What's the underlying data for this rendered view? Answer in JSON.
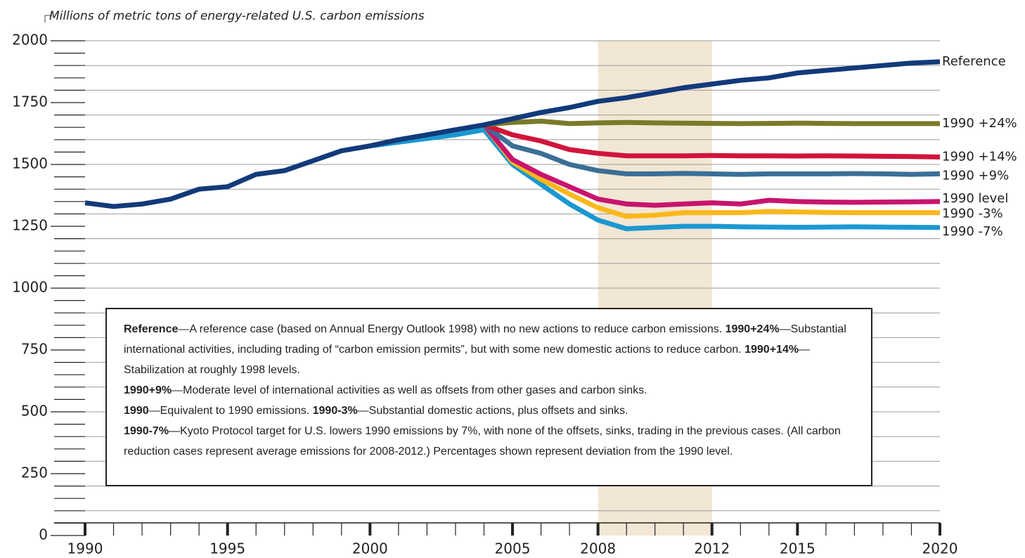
{
  "chart_data": {
    "type": "line",
    "title": "Millions of metric tons of energy-related U.S. carbon emissions",
    "x": [
      1990,
      1991,
      1992,
      1993,
      1994,
      1995,
      1996,
      1997,
      1998,
      1999,
      2000,
      2001,
      2002,
      2003,
      2004,
      2005,
      2006,
      2007,
      2008,
      2009,
      2010,
      2011,
      2012,
      2013,
      2014,
      2015,
      2016,
      2017,
      2018,
      2019,
      2020
    ],
    "xlim": [
      1990,
      2020
    ],
    "xticks": [
      1990,
      1995,
      2000,
      2005,
      2008,
      2012,
      2015,
      2020
    ],
    "xminor": [
      1990,
      1991,
      1992,
      1993,
      1994,
      1995,
      1996,
      1997,
      1998,
      1999,
      2000,
      2001,
      2002,
      2003,
      2004,
      2005,
      2006,
      2007,
      2008,
      2009,
      2010,
      2011,
      2012,
      2013,
      2014,
      2015,
      2016,
      2017,
      2018,
      2019,
      2020
    ],
    "ylim": [
      0,
      2000
    ],
    "yticks": [
      0,
      250,
      500,
      750,
      1000,
      1250,
      1500,
      1750,
      2000
    ],
    "yminor": [
      50,
      100,
      150,
      200,
      300,
      350,
      400,
      450,
      550,
      600,
      650,
      700,
      800,
      850,
      900,
      950,
      1050,
      1100,
      1150,
      1200,
      1300,
      1350,
      1400,
      1450,
      1550,
      1600,
      1650,
      1700,
      1800,
      1850,
      1900,
      1950
    ],
    "ygrid": [
      100,
      200,
      300,
      400,
      500,
      600,
      700,
      800,
      900,
      1000,
      1100,
      1200,
      1300,
      1400,
      1500,
      1600,
      1700,
      1800,
      1900,
      2000
    ],
    "shade": [
      2008,
      2012
    ],
    "shade_color": "#f2e6d4",
    "series": [
      {
        "name": "Reference",
        "color": "#123a7a",
        "values": [
          1345,
          1330,
          1340,
          1360,
          1400,
          1410,
          1460,
          1475,
          1515,
          1555,
          1575,
          1600,
          1620,
          1640,
          1660,
          1685,
          1710,
          1730,
          1755,
          1770,
          1790,
          1810,
          1825,
          1840,
          1850,
          1870,
          1880,
          1890,
          1900,
          1910,
          1915
        ]
      },
      {
        "name": "1990 +24%",
        "color": "#7a7a2a",
        "values": [
          null,
          null,
          null,
          null,
          null,
          null,
          null,
          null,
          null,
          null,
          null,
          null,
          null,
          null,
          1660,
          1670,
          1675,
          1665,
          1668,
          1670,
          1668,
          1667,
          1666,
          1665,
          1666,
          1667,
          1666,
          1665,
          1665,
          1665,
          1665
        ]
      },
      {
        "name": "1990 +14%",
        "color": "#d2143c",
        "values": [
          null,
          null,
          null,
          null,
          null,
          null,
          null,
          null,
          null,
          null,
          null,
          null,
          null,
          null,
          1660,
          1620,
          1595,
          1560,
          1545,
          1535,
          1535,
          1535,
          1536,
          1535,
          1535,
          1534,
          1535,
          1534,
          1533,
          1532,
          1530
        ]
      },
      {
        "name": "1990 +9%",
        "color": "#3a6f96",
        "values": [
          null,
          null,
          null,
          null,
          null,
          null,
          null,
          null,
          null,
          null,
          null,
          null,
          null,
          null,
          1660,
          1575,
          1545,
          1500,
          1475,
          1462,
          1462,
          1464,
          1462,
          1460,
          1462,
          1462,
          1462,
          1463,
          1462,
          1460,
          1462
        ]
      },
      {
        "name": "1990 level",
        "color": "#c8146e",
        "values": [
          null,
          null,
          null,
          null,
          null,
          null,
          null,
          null,
          null,
          null,
          null,
          null,
          null,
          null,
          1660,
          1520,
          1460,
          1410,
          1360,
          1340,
          1335,
          1340,
          1345,
          1340,
          1355,
          1350,
          1348,
          1347,
          1348,
          1349,
          1350
        ]
      },
      {
        "name": "1990 -3%",
        "color": "#fbb81b",
        "values": [
          null,
          null,
          null,
          null,
          null,
          null,
          null,
          null,
          null,
          null,
          null,
          null,
          null,
          null,
          1660,
          1510,
          1440,
          1380,
          1325,
          1290,
          1295,
          1305,
          1305,
          1305,
          1310,
          1308,
          1306,
          1305,
          1305,
          1305,
          1305
        ]
      },
      {
        "name": "1990 -7%",
        "color": "#1a98d0",
        "values": [
          null,
          null,
          null,
          null,
          null,
          null,
          null,
          null,
          null,
          null,
          1575,
          1590,
          1605,
          1620,
          1640,
          1500,
          1420,
          1340,
          1275,
          1240,
          1245,
          1250,
          1250,
          1248,
          1247,
          1246,
          1247,
          1248,
          1247,
          1246,
          1245
        ]
      }
    ],
    "notes": [
      {
        "term": "Reference",
        "text": "—A reference case (based on Annual Energy Outlook 1998) with no new actions to reduce carbon emissions."
      },
      {
        "term": "1990+24%",
        "text": "—Substantial international activities, including trading of “carbon emission permits”, but with some new domestic actions to reduce carbon."
      },
      {
        "term": "1990+14%",
        "text": "—Stabilization at roughly 1998 levels."
      },
      {
        "term": "1990+9%",
        "text": "—Moderate level of international activities as well as offsets from other gases and carbon sinks."
      },
      {
        "term": "1990",
        "text": "—Equivalent to 1990 emissions."
      },
      {
        "term": "1990-3%",
        "text": "—Substantial domestic actions, plus offsets and sinks."
      },
      {
        "term": "1990-7%",
        "text": "—Kyoto Protocol target for U.S. lowers 1990 emissions by 7%, with none of the offsets, sinks, trading in the previous cases.  (All carbon reduction cases represent average emissions for 2008-2012.) Percentages shown represent deviation from the 1990 level."
      }
    ]
  }
}
